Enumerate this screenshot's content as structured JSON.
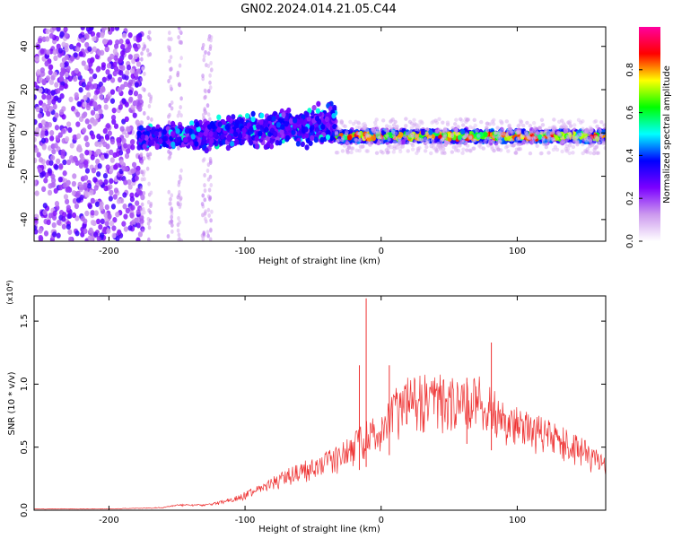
{
  "figure": {
    "title": "GN02.2024.014.21.05.C44"
  },
  "chart_data": [
    {
      "type": "heatmap",
      "xlabel": "Height of straight line (km)",
      "ylabel": "Frequency (Hz)",
      "xlim": [
        -255,
        165
      ],
      "ylim": [
        -50,
        49
      ],
      "xticks": [
        -200,
        -100,
        0,
        100
      ],
      "yticks": [
        -40,
        -20,
        0,
        20,
        40
      ],
      "colorbar": {
        "label": "Normalized spectral amplitude",
        "range": [
          0,
          1
        ],
        "ticks": [
          "0.0",
          "0.2",
          "0.4",
          "0.6",
          "0.8"
        ],
        "colormap": [
          "#ffffff",
          "#cc99ee",
          "#7b00ff",
          "#0000ff",
          "#00ffff",
          "#00ff00",
          "#ffff00",
          "#ff0000",
          "#ff00a0"
        ]
      },
      "regions": [
        {
          "name": "scattered noise",
          "x": [
            -255,
            -175
          ],
          "freq": [
            -50,
            49
          ],
          "amplitude": 0.25
        },
        {
          "name": "faint columns",
          "x": [
            -175,
            -125
          ],
          "freq": [
            -50,
            49
          ],
          "amplitude": 0.1
        },
        {
          "name": "broadband signal",
          "x": [
            -178,
            -33
          ],
          "freq": [
            -12,
            22
          ],
          "amplitude": 0.35
        },
        {
          "name": "narrow tone",
          "x": [
            -33,
            165
          ],
          "freq": [
            -5,
            4
          ],
          "amplitude": 0.8
        }
      ],
      "grid": false
    },
    {
      "type": "line",
      "xlabel": "Height of straight line (km)",
      "ylabel": "SNR (10 * v/v)",
      "y_multiplier": "(x10⁴)",
      "xlim": [
        -255,
        165
      ],
      "ylim": [
        0,
        1.7
      ],
      "xticks": [
        -200,
        -100,
        0,
        100
      ],
      "yticks": [
        0.0,
        0.5,
        1.0,
        1.5
      ],
      "ytick_labels": [
        "0.0",
        "0.5",
        "1.0",
        "1.5"
      ],
      "color": "#ee3333",
      "x": [
        -255,
        -200,
        -160,
        -150,
        -130,
        -110,
        -100,
        -90,
        -80,
        -70,
        -60,
        -50,
        -40,
        -30,
        -20,
        -10,
        0,
        10,
        20,
        30,
        40,
        50,
        60,
        70,
        80,
        90,
        100,
        110,
        120,
        130,
        140,
        150,
        160,
        165
      ],
      "y": [
        0.01,
        0.01,
        0.02,
        0.04,
        0.04,
        0.08,
        0.12,
        0.16,
        0.21,
        0.26,
        0.3,
        0.34,
        0.38,
        0.42,
        0.5,
        0.58,
        0.65,
        0.78,
        0.85,
        0.88,
        0.88,
        0.86,
        0.88,
        0.87,
        0.8,
        0.72,
        0.66,
        0.62,
        0.6,
        0.55,
        0.5,
        0.45,
        0.38,
        0.35
      ],
      "spikes": [
        {
          "x": -11,
          "y": 1.68
        },
        {
          "x": -16,
          "y": 1.15
        },
        {
          "x": 6,
          "y": 1.15
        },
        {
          "x": 81,
          "y": 1.33
        },
        {
          "x": 63,
          "y": 1.05
        }
      ],
      "grid": false
    }
  ]
}
